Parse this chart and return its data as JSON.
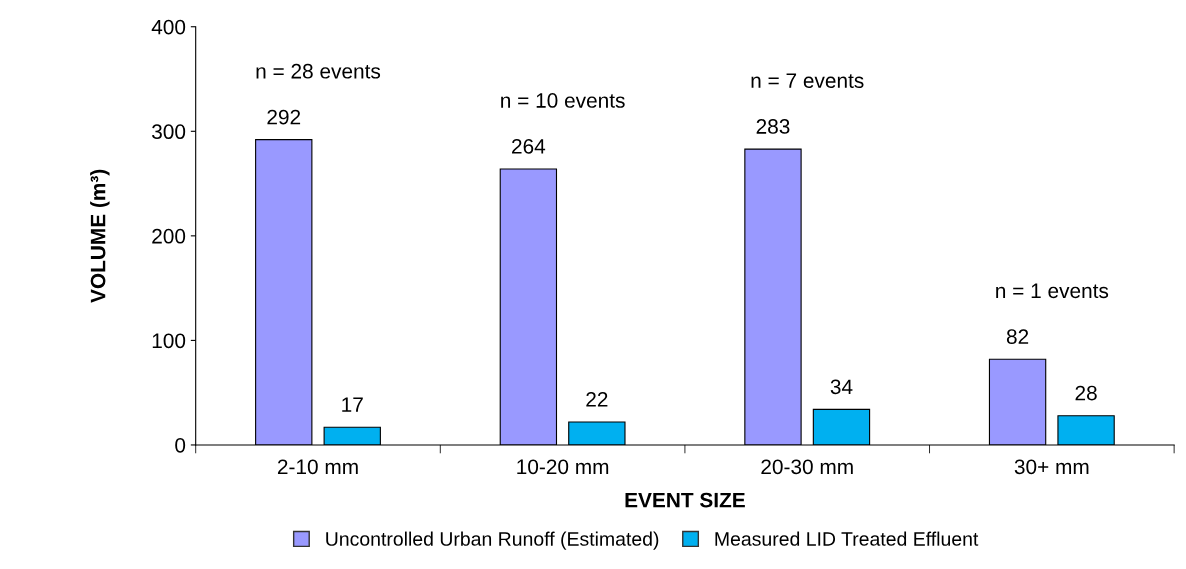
{
  "chart_data": {
    "type": "bar",
    "xlabel": "EVENT SIZE",
    "ylabel": "VOLUME (m³)",
    "categories": [
      "2-10 mm",
      "10-20 mm",
      "20-30 mm",
      "30+ mm"
    ],
    "series": [
      {
        "name": "Uncontrolled Urban Runoff (Estimated)",
        "color": "#9999ff",
        "values": [
          292,
          264,
          283,
          82
        ]
      },
      {
        "name": "Measured LID Treated Effluent",
        "color": "#00b0f0",
        "values": [
          17,
          22,
          34,
          28
        ]
      }
    ],
    "ylim": [
      0,
      400
    ],
    "yticks": [
      0,
      100,
      200,
      300,
      400
    ],
    "grid": false,
    "legend": "bottom",
    "data_labels": true,
    "annotations": [
      "n = 28 events",
      "n = 10 events",
      "n = 7 events",
      "n = 1 events"
    ]
  }
}
